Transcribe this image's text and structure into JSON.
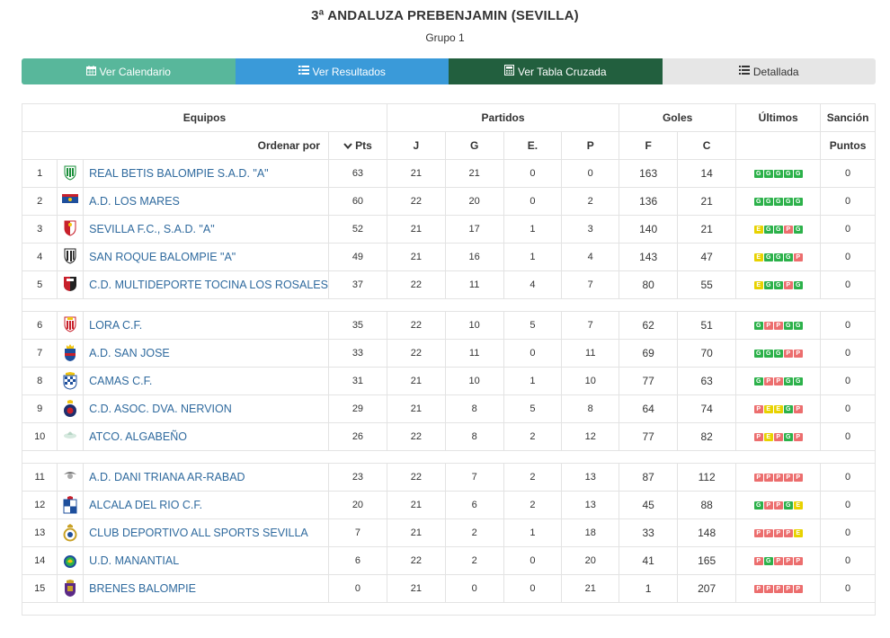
{
  "header": {
    "title": "3ª ANDALUZA PREBENJAMIN (SEVILLA)",
    "subtitle": "Grupo 1"
  },
  "buttons": {
    "calendario": "Ver Calendario",
    "resultados": "Ver Resultados",
    "tabla_cruzada": "Ver Tabla Cruzada",
    "detallada": "Detallada"
  },
  "table": {
    "group_headers": {
      "equipos": "Equipos",
      "partidos": "Partidos",
      "goles": "Goles",
      "ultimos": "Últimos",
      "sancion": "Sanción"
    },
    "sub_headers": {
      "ordenar_por": "Ordenar por",
      "pts": "Pts",
      "j": "J",
      "g": "G",
      "e": "E.",
      "p": "P",
      "f": "F",
      "c": "C",
      "puntos": "Puntos"
    },
    "rows": [
      {
        "pos": "1",
        "team": "REAL BETIS BALOMPIE S.A.D. \"A\"",
        "crest": "green-white-crest-icon",
        "pts": "63",
        "j": "21",
        "g": "21",
        "e": "0",
        "p": "0",
        "f": "163",
        "c": "14",
        "forms": [
          "G",
          "G",
          "G",
          "G",
          "G"
        ],
        "sancion": "0"
      },
      {
        "pos": "2",
        "team": "A.D. LOS MARES",
        "crest": "blue-red-flag-crest-icon",
        "pts": "60",
        "j": "22",
        "g": "20",
        "e": "0",
        "p": "2",
        "f": "136",
        "c": "21",
        "forms": [
          "G",
          "G",
          "G",
          "G",
          "G"
        ],
        "sancion": "0"
      },
      {
        "pos": "3",
        "team": "SEVILLA F.C., S.A.D. \"A\"",
        "crest": "red-white-crest-icon",
        "pts": "52",
        "j": "21",
        "g": "17",
        "e": "1",
        "p": "3",
        "f": "140",
        "c": "21",
        "forms": [
          "E",
          "G",
          "G",
          "P",
          "G"
        ],
        "sancion": "0"
      },
      {
        "pos": "4",
        "team": "SAN ROQUE BALOMPIE \"A\"",
        "crest": "black-white-crest-icon",
        "pts": "49",
        "j": "21",
        "g": "16",
        "e": "1",
        "p": "4",
        "f": "143",
        "c": "47",
        "forms": [
          "E",
          "G",
          "G",
          "G",
          "P"
        ],
        "sancion": "0"
      },
      {
        "pos": "5",
        "team": "C.D. MULTIDEPORTE TOCINA LOS ROSALES",
        "crest": "red-black-shield-icon",
        "pts": "37",
        "j": "22",
        "g": "11",
        "e": "4",
        "p": "7",
        "f": "80",
        "c": "55",
        "forms": [
          "E",
          "G",
          "G",
          "P",
          "G"
        ],
        "sancion": "0"
      },
      {
        "sep": true
      },
      {
        "pos": "6",
        "team": "LORA C.F.",
        "crest": "red-white-stripes-crest-icon",
        "pts": "35",
        "j": "22",
        "g": "10",
        "e": "5",
        "p": "7",
        "f": "62",
        "c": "51",
        "forms": [
          "G",
          "P",
          "P",
          "G",
          "G"
        ],
        "sancion": "0"
      },
      {
        "pos": "7",
        "team": "A.D. SAN JOSE",
        "crest": "blue-red-crown-crest-icon",
        "pts": "33",
        "j": "22",
        "g": "11",
        "e": "0",
        "p": "11",
        "f": "69",
        "c": "70",
        "forms": [
          "G",
          "G",
          "G",
          "P",
          "P"
        ],
        "sancion": "0"
      },
      {
        "pos": "8",
        "team": "CAMAS C.F.",
        "crest": "blue-white-checker-crest-icon",
        "pts": "31",
        "j": "21",
        "g": "10",
        "e": "1",
        "p": "10",
        "f": "77",
        "c": "63",
        "forms": [
          "G",
          "P",
          "P",
          "G",
          "G"
        ],
        "sancion": "0"
      },
      {
        "pos": "9",
        "team": "C.D. ASOC. DVA. NERVION",
        "crest": "navy-red-round-crest-icon",
        "pts": "29",
        "j": "21",
        "g": "8",
        "e": "5",
        "p": "8",
        "f": "64",
        "c": "74",
        "forms": [
          "P",
          "E",
          "E",
          "G",
          "P"
        ],
        "sancion": "0"
      },
      {
        "pos": "10",
        "team": "ATCO. ALGABEÑO",
        "crest": "pale-green-crest-icon",
        "pts": "26",
        "j": "22",
        "g": "8",
        "e": "2",
        "p": "12",
        "f": "77",
        "c": "82",
        "forms": [
          "P",
          "E",
          "P",
          "G",
          "P"
        ],
        "sancion": "0"
      },
      {
        "sep": true
      },
      {
        "pos": "11",
        "team": "A.D. DANI TRIANA AR-RABAD",
        "crest": "grey-bird-crest-icon",
        "pts": "23",
        "j": "22",
        "g": "7",
        "e": "2",
        "p": "13",
        "f": "87",
        "c": "112",
        "forms": [
          "P",
          "P",
          "P",
          "P",
          "P"
        ],
        "sancion": "0"
      },
      {
        "pos": "12",
        "team": "ALCALA DEL RIO C.F.",
        "crest": "blue-white-quarters-crest-icon",
        "pts": "20",
        "j": "21",
        "g": "6",
        "e": "2",
        "p": "13",
        "f": "45",
        "c": "88",
        "forms": [
          "G",
          "P",
          "P",
          "G",
          "E"
        ],
        "sancion": "0"
      },
      {
        "pos": "13",
        "team": "CLUB DEPORTIVO ALL SPORTS SEVILLA",
        "crest": "blue-yellow-ring-crest-icon",
        "pts": "7",
        "j": "21",
        "g": "2",
        "e": "1",
        "p": "18",
        "f": "33",
        "c": "148",
        "forms": [
          "P",
          "P",
          "P",
          "P",
          "E"
        ],
        "sancion": "0"
      },
      {
        "pos": "14",
        "team": "U.D. MANANTIAL",
        "crest": "green-blue-round-crest-icon",
        "pts": "6",
        "j": "22",
        "g": "2",
        "e": "0",
        "p": "20",
        "f": "41",
        "c": "165",
        "forms": [
          "P",
          "G",
          "P",
          "P",
          "P"
        ],
        "sancion": "0"
      },
      {
        "pos": "15",
        "team": "BRENES BALOMPIE",
        "crest": "purple-gold-crest-icon",
        "pts": "0",
        "j": "21",
        "g": "0",
        "e": "0",
        "p": "21",
        "f": "1",
        "c": "207",
        "forms": [
          "P",
          "P",
          "P",
          "P",
          "P"
        ],
        "sancion": "0"
      },
      {
        "sep": true
      }
    ]
  },
  "colors": {
    "btn_calendario": "#58b79b",
    "btn_resultados": "#3a9ad9",
    "btn_tabla_cruzada": "#225f3e",
    "btn_detallada": "#e6e6e6",
    "link": "#2f6a9e",
    "form_G": "#2cb14a",
    "form_E": "#e8d200",
    "form_P": "#ec6e6e"
  }
}
